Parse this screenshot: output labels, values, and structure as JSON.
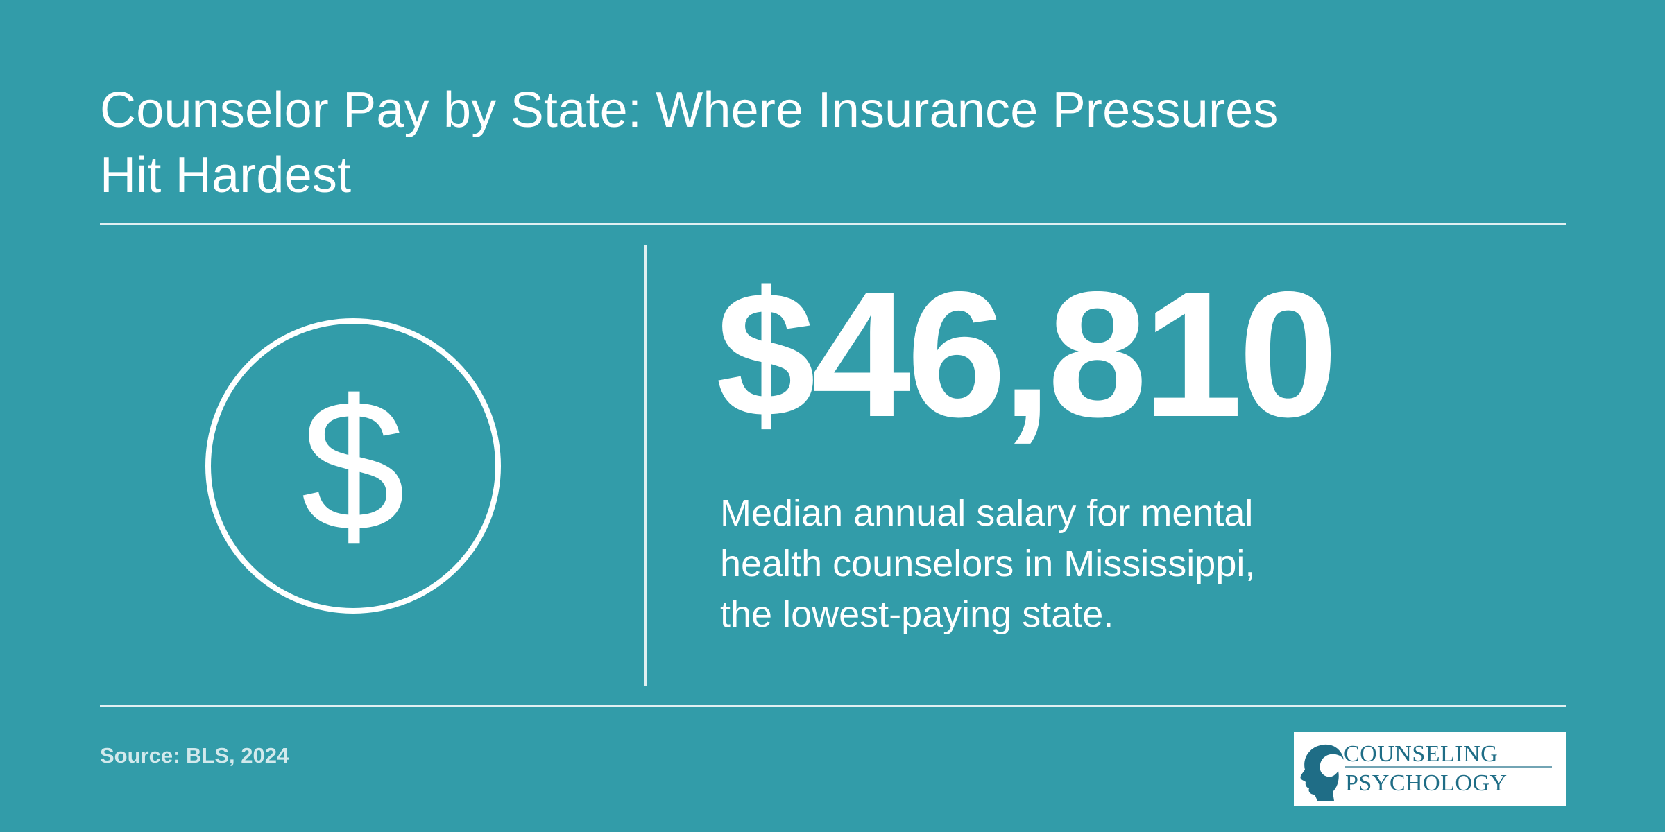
{
  "title_lines": [
    "Counselor Pay by State: Where Insurance Pressures",
    "Hit Hardest"
  ],
  "icon": {
    "name": "dollar-circle-icon",
    "glyph": "$"
  },
  "stat": {
    "value": "$46,810"
  },
  "description_lines": [
    "Median annual salary for mental",
    "health counselors in Mississippi,",
    "the lowest-paying state."
  ],
  "source": "Source: BLS, 2024",
  "logo": {
    "line1": "COUNSELING",
    "line2": "PSYCHOLOGY",
    "brand_color": "#1f6d86"
  },
  "colors": {
    "background": "#329ca9",
    "text": "#ffffff"
  }
}
